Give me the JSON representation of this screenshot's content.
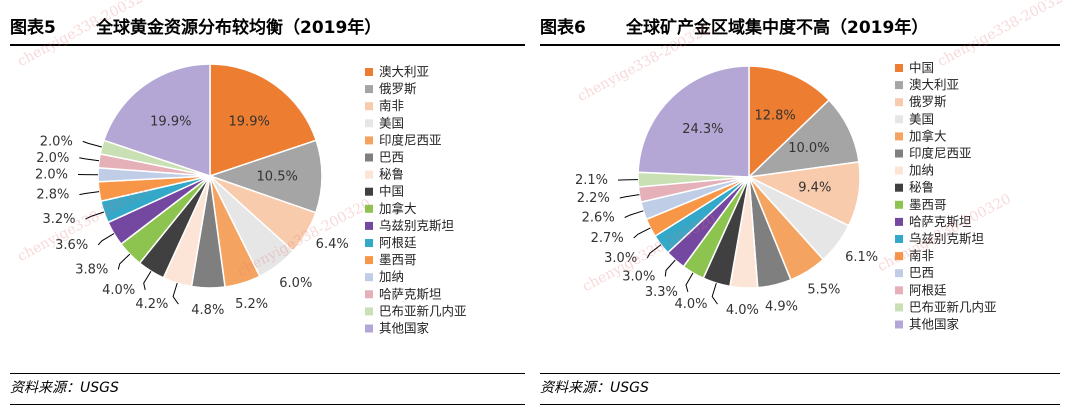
{
  "panels": [
    {
      "figure_label": "图表5",
      "title": "全球黄金资源分布较均衡（2019年）",
      "source": "资料来源：USGS"
    },
    {
      "figure_label": "图表6",
      "title": "全球矿产金区域集中度不高（2019年）",
      "source": "资料来源：USGS"
    }
  ],
  "watermark": "chenyige338-200320",
  "chart_data": [
    {
      "type": "pie",
      "title": "全球黄金资源分布较均衡（2019年）",
      "legend_position": "right",
      "slices": [
        {
          "name": "澳大利亚",
          "value": 19.9,
          "label": "19.9%",
          "color": "#ED7D31"
        },
        {
          "name": "俄罗斯",
          "value": 10.5,
          "label": "10.5%",
          "color": "#A5A5A5"
        },
        {
          "name": "南非",
          "value": 6.4,
          "label": "6.4%",
          "color": "#F8CBAD"
        },
        {
          "name": "美国",
          "value": 6.0,
          "label": "6.0%",
          "color": "#E7E6E6"
        },
        {
          "name": "印度尼西亚",
          "value": 5.2,
          "label": "5.2%",
          "color": "#F4A460"
        },
        {
          "name": "巴西",
          "value": 4.8,
          "label": "4.8%",
          "color": "#7F7F7F"
        },
        {
          "name": "秘鲁",
          "value": 4.2,
          "label": "4.2%",
          "color": "#FCE4D6"
        },
        {
          "name": "中国",
          "value": 4.0,
          "label": "4.0%",
          "color": "#404040"
        },
        {
          "name": "加拿大",
          "value": 3.8,
          "label": "3.8%",
          "color": "#8DC450"
        },
        {
          "name": "乌兹别克斯坦",
          "value": 3.6,
          "label": "3.6%",
          "color": "#7448A0"
        },
        {
          "name": "阿根廷",
          "value": 3.2,
          "label": "3.2%",
          "color": "#33A8C8"
        },
        {
          "name": "墨西哥",
          "value": 2.8,
          "label": "2.8%",
          "color": "#F79646"
        },
        {
          "name": "加纳",
          "value": 2.0,
          "label": "2.0%",
          "color": "#BFCDE6"
        },
        {
          "name": "哈萨克斯坦",
          "value": 2.0,
          "label": "2.0%",
          "color": "#E6B0B8"
        },
        {
          "name": "巴布亚新几内亚",
          "value": 2.0,
          "label": "2.0%",
          "color": "#C8E0B4"
        },
        {
          "name": "其他国家",
          "value": 19.9,
          "label": "19.9%",
          "color": "#B4A7D6"
        }
      ]
    },
    {
      "type": "pie",
      "title": "全球矿产金区域集中度不高（2019年）",
      "legend_position": "right",
      "slices": [
        {
          "name": "中国",
          "value": 12.8,
          "label": "12.8%",
          "color": "#ED7D31"
        },
        {
          "name": "澳大利亚",
          "value": 10.0,
          "label": "10.0%",
          "color": "#A5A5A5"
        },
        {
          "name": "俄罗斯",
          "value": 9.4,
          "label": "9.4%",
          "color": "#F8CBAD"
        },
        {
          "name": "美国",
          "value": 6.1,
          "label": "6.1%",
          "color": "#E7E6E6"
        },
        {
          "name": "加拿大",
          "value": 5.5,
          "label": "5.5%",
          "color": "#F4A460"
        },
        {
          "name": "印度尼西亚",
          "value": 4.9,
          "label": "4.9%",
          "color": "#7F7F7F"
        },
        {
          "name": "加纳",
          "value": 4.0,
          "label": "4.0%",
          "color": "#FCE4D6"
        },
        {
          "name": "秘鲁",
          "value": 4.0,
          "label": "4.0%",
          "color": "#404040"
        },
        {
          "name": "墨西哥",
          "value": 3.3,
          "label": "3.3%",
          "color": "#8DC450"
        },
        {
          "name": "哈萨克斯坦",
          "value": 3.0,
          "label": "3.0%",
          "color": "#7448A0"
        },
        {
          "name": "乌兹别克斯坦",
          "value": 3.0,
          "label": "3.0%",
          "color": "#33A8C8"
        },
        {
          "name": "南非",
          "value": 2.7,
          "label": "2.7%",
          "color": "#F79646"
        },
        {
          "name": "巴西",
          "value": 2.6,
          "label": "2.6%",
          "color": "#BFCDE6"
        },
        {
          "name": "阿根廷",
          "value": 2.2,
          "label": "2.2%",
          "color": "#E6B0B8"
        },
        {
          "name": "巴布亚新几内亚",
          "value": 2.1,
          "label": "2.1%",
          "color": "#C8E0B4"
        },
        {
          "name": "其他国家",
          "value": 24.3,
          "label": "24.3%",
          "color": "#B4A7D6"
        }
      ]
    }
  ]
}
